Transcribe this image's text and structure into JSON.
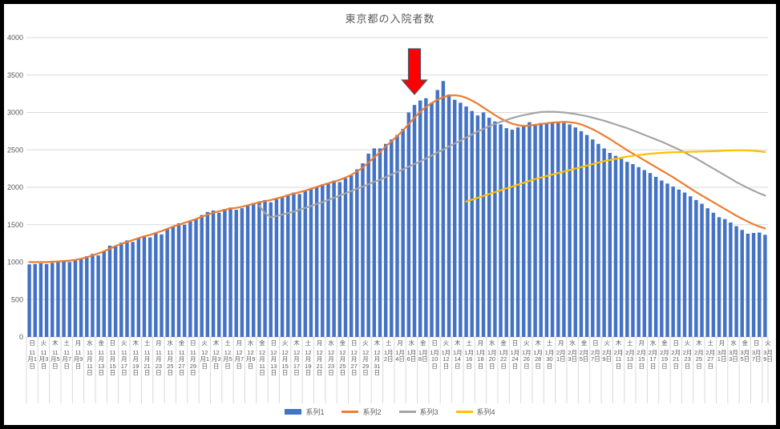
{
  "title": "東京都の入院者数",
  "legend": {
    "items": [
      "系列1",
      "系列2",
      "系列3",
      "系列4"
    ]
  },
  "colors": {
    "bar_series": "#4472C4",
    "line_series2": "#ED7D31",
    "line_series3": "#A5A5A5",
    "line_series4": "#FFC000",
    "gridline": "#D9D9D9",
    "text": "#595959",
    "annotation_fill": "#FF0000",
    "annotation_outline": "#44546A"
  },
  "chart_data": {
    "type": "bar",
    "subtype": "combo-bar-with-lines",
    "title": "東京都の入院者数",
    "ylim": [
      0,
      4000
    ],
    "y_tick_step": 500,
    "y_tick_labels": [
      "0",
      "500",
      "1000",
      "1500",
      "2000",
      "2500",
      "3000",
      "3500",
      "4000"
    ],
    "grid": "horizontal",
    "legend_position": "bottom",
    "x_is_daily": true,
    "x_label_every_n_days": 2,
    "x_tick_labels": [
      {
        "dow": "日",
        "date": "11月1日"
      },
      {
        "dow": "火",
        "date": "11月3日"
      },
      {
        "dow": "木",
        "date": "11月5日"
      },
      {
        "dow": "土",
        "date": "11月7日"
      },
      {
        "dow": "月",
        "date": "11月9日"
      },
      {
        "dow": "水",
        "date": "11月11日"
      },
      {
        "dow": "金",
        "date": "11月13日"
      },
      {
        "dow": "日",
        "date": "11月15日"
      },
      {
        "dow": "火",
        "date": "11月17日"
      },
      {
        "dow": "木",
        "date": "11月19日"
      },
      {
        "dow": "土",
        "date": "11月21日"
      },
      {
        "dow": "月",
        "date": "11月23日"
      },
      {
        "dow": "水",
        "date": "11月25日"
      },
      {
        "dow": "金",
        "date": "11月27日"
      },
      {
        "dow": "日",
        "date": "11月29日"
      },
      {
        "dow": "火",
        "date": "12月1日"
      },
      {
        "dow": "木",
        "date": "12月3日"
      },
      {
        "dow": "土",
        "date": "12月5日"
      },
      {
        "dow": "月",
        "date": "12月7日"
      },
      {
        "dow": "水",
        "date": "12月9日"
      },
      {
        "dow": "金",
        "date": "12月11日"
      },
      {
        "dow": "日",
        "date": "12月13日"
      },
      {
        "dow": "火",
        "date": "12月15日"
      },
      {
        "dow": "木",
        "date": "12月17日"
      },
      {
        "dow": "土",
        "date": "12月19日"
      },
      {
        "dow": "月",
        "date": "12月21日"
      },
      {
        "dow": "水",
        "date": "12月23日"
      },
      {
        "dow": "金",
        "date": "12月25日"
      },
      {
        "dow": "日",
        "date": "12月27日"
      },
      {
        "dow": "火",
        "date": "12月29日"
      },
      {
        "dow": "木",
        "date": "12月31日"
      },
      {
        "dow": "土",
        "date": "1月2日"
      },
      {
        "dow": "月",
        "date": "1月4日"
      },
      {
        "dow": "水",
        "date": "1月6日"
      },
      {
        "dow": "金",
        "date": "1月8日"
      },
      {
        "dow": "日",
        "date": "1月10日"
      },
      {
        "dow": "火",
        "date": "1月12日"
      },
      {
        "dow": "木",
        "date": "1月14日"
      },
      {
        "dow": "土",
        "date": "1月16日"
      },
      {
        "dow": "月",
        "date": "1月18日"
      },
      {
        "dow": "水",
        "date": "1月20日"
      },
      {
        "dow": "金",
        "date": "1月22日"
      },
      {
        "dow": "日",
        "date": "1月24日"
      },
      {
        "dow": "火",
        "date": "1月26日"
      },
      {
        "dow": "木",
        "date": "1月28日"
      },
      {
        "dow": "土",
        "date": "1月30日"
      },
      {
        "dow": "月",
        "date": "2月1日"
      },
      {
        "dow": "水",
        "date": "2月3日"
      },
      {
        "dow": "金",
        "date": "2月5日"
      },
      {
        "dow": "日",
        "date": "2月7日"
      },
      {
        "dow": "火",
        "date": "2月9日"
      },
      {
        "dow": "木",
        "date": "2月11日"
      },
      {
        "dow": "土",
        "date": "2月13日"
      },
      {
        "dow": "月",
        "date": "2月15日"
      },
      {
        "dow": "水",
        "date": "2月17日"
      },
      {
        "dow": "金",
        "date": "2月19日"
      },
      {
        "dow": "日",
        "date": "2月21日"
      },
      {
        "dow": "火",
        "date": "2月23日"
      },
      {
        "dow": "木",
        "date": "2月25日"
      },
      {
        "dow": "土",
        "date": "2月27日"
      },
      {
        "dow": "月",
        "date": "3月1日"
      },
      {
        "dow": "水",
        "date": "3月3日"
      },
      {
        "dow": "金",
        "date": "3月5日"
      },
      {
        "dow": "日",
        "date": "3月7日"
      },
      {
        "dow": "火",
        "date": "3月9日"
      }
    ],
    "series": [
      {
        "name": "系列1",
        "type": "bar",
        "color": "#4472C4",
        "start_index": 0,
        "values": [
          970,
          975,
          985,
          975,
          990,
          1000,
          1010,
          1000,
          1025,
          1050,
          1080,
          1110,
          1090,
          1150,
          1220,
          1210,
          1260,
          1290,
          1270,
          1320,
          1350,
          1330,
          1390,
          1370,
          1440,
          1480,
          1520,
          1500,
          1550,
          1580,
          1630,
          1670,
          1690,
          1660,
          1710,
          1730,
          1700,
          1720,
          1760,
          1790,
          1810,
          1830,
          1800,
          1840,
          1870,
          1900,
          1930,
          1910,
          1950,
          1980,
          2010,
          2040,
          2060,
          2090,
          2070,
          2120,
          2160,
          2240,
          2320,
          2450,
          2520,
          2520,
          2580,
          2640,
          2700,
          2780,
          3000,
          3100,
          3160,
          3190,
          3130,
          3300,
          3420,
          3240,
          3170,
          3130,
          3080,
          3020,
          2960,
          3000,
          2930,
          2880,
          2840,
          2790,
          2770,
          2800,
          2830,
          2870,
          2840,
          2860,
          2850,
          2860,
          2870,
          2860,
          2840,
          2800,
          2750,
          2700,
          2640,
          2580,
          2520,
          2460,
          2420,
          2380,
          2340,
          2310,
          2270,
          2230,
          2190,
          2140,
          2090,
          2050,
          2010,
          1970,
          1930,
          1880,
          1830,
          1780,
          1720,
          1660,
          1600,
          1575,
          1530,
          1480,
          1430,
          1380,
          1390,
          1395,
          1365
        ]
      },
      {
        "name": "系列2",
        "type": "line",
        "color": "#ED7D31",
        "start_index": 0,
        "values": [
          1000,
          1000,
          1000,
          1000,
          1005,
          1010,
          1015,
          1020,
          1030,
          1045,
          1065,
          1090,
          1115,
          1145,
          1180,
          1215,
          1245,
          1270,
          1295,
          1320,
          1345,
          1365,
          1390,
          1415,
          1445,
          1475,
          1500,
          1525,
          1550,
          1575,
          1605,
          1635,
          1660,
          1680,
          1700,
          1715,
          1725,
          1740,
          1760,
          1780,
          1800,
          1815,
          1830,
          1850,
          1870,
          1895,
          1915,
          1935,
          1955,
          1980,
          2005,
          2030,
          2055,
          2075,
          2100,
          2130,
          2165,
          2210,
          2265,
          2330,
          2400,
          2470,
          2545,
          2615,
          2685,
          2760,
          2845,
          2930,
          3010,
          3075,
          3125,
          3170,
          3205,
          3225,
          3230,
          3220,
          3195,
          3160,
          3115,
          3065,
          3015,
          2965,
          2920,
          2880,
          2850,
          2830,
          2820,
          2825,
          2835,
          2845,
          2855,
          2865,
          2870,
          2875,
          2870,
          2860,
          2840,
          2810,
          2775,
          2735,
          2690,
          2645,
          2595,
          2545,
          2495,
          2450,
          2405,
          2360,
          2315,
          2270,
          2225,
          2180,
          2135,
          2085,
          2035,
          1985,
          1935,
          1890,
          1845,
          1800,
          1755,
          1710,
          1665,
          1620,
          1580,
          1540,
          1505,
          1475,
          1450
        ]
      },
      {
        "name": "系列3",
        "type": "line",
        "color": "#A5A5A5",
        "start_index": 40,
        "values": [
          1755,
          1655,
          1600,
          1615,
          1635,
          1655,
          1675,
          1700,
          1725,
          1750,
          1775,
          1800,
          1830,
          1860,
          1890,
          1920,
          1950,
          1980,
          2010,
          2040,
          2075,
          2100,
          2135,
          2170,
          2205,
          2240,
          2275,
          2310,
          2345,
          2385,
          2425,
          2465,
          2505,
          2545,
          2585,
          2625,
          2665,
          2705,
          2745,
          2780,
          2815,
          2845,
          2875,
          2900,
          2925,
          2945,
          2965,
          2980,
          2995,
          3005,
          3010,
          3010,
          3005,
          3000,
          2990,
          2980,
          2965,
          2950,
          2930,
          2910,
          2890,
          2865,
          2840,
          2815,
          2790,
          2760,
          2730,
          2700,
          2670,
          2640,
          2610,
          2575,
          2540,
          2505,
          2465,
          2425,
          2385,
          2340,
          2295,
          2250,
          2205,
          2160,
          2115,
          2070,
          2030,
          1990,
          1955,
          1920,
          1890
        ]
      },
      {
        "name": "系列4",
        "type": "line",
        "color": "#FFC000",
        "start_index": 76,
        "values": [
          1810,
          1835,
          1860,
          1885,
          1910,
          1935,
          1960,
          1985,
          2010,
          2035,
          2060,
          2085,
          2110,
          2130,
          2150,
          2170,
          2190,
          2210,
          2230,
          2250,
          2270,
          2290,
          2310,
          2330,
          2350,
          2365,
          2380,
          2395,
          2410,
          2420,
          2430,
          2440,
          2448,
          2455,
          2460,
          2465,
          2468,
          2470,
          2472,
          2474,
          2476,
          2478,
          2480,
          2482,
          2486,
          2490,
          2492,
          2494,
          2494,
          2492,
          2488,
          2480,
          2472
        ]
      }
    ],
    "annotation": {
      "type": "down-arrow",
      "fill": "#FF0000",
      "outline": "#44546A",
      "points_at_day_index": 67
    }
  }
}
